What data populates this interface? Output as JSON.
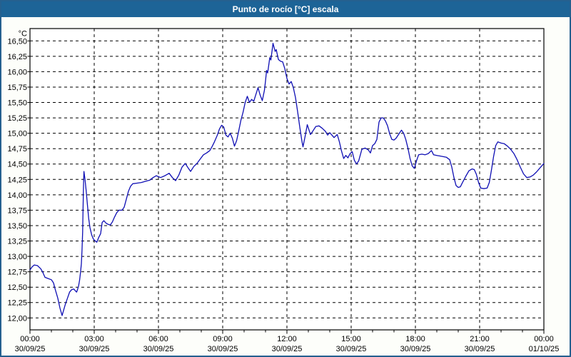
{
  "window": {
    "title": "Punto de rocío [°C] escala"
  },
  "colors": {
    "titlebar": "#1d6497",
    "title_text": "#ffffff",
    "window_border": "#25608f",
    "content_bg": "#fdfefa",
    "plot_bg": "#ffffff",
    "grid": "#000000",
    "axis_text": "#000000",
    "line": "#0f0fb4"
  },
  "chart_data": {
    "type": "line",
    "title": "Punto de rocío [°C] escala",
    "unit_label": "°C",
    "grid": "dashed",
    "legend": "none",
    "xlim_hours": [
      0,
      24
    ],
    "ylim": [
      12.0,
      16.5
    ],
    "y_tick_step": 0.25,
    "y_ticks": [
      16.5,
      16.25,
      16.0,
      15.75,
      15.5,
      15.25,
      15.0,
      14.75,
      14.5,
      14.25,
      14.0,
      13.75,
      13.5,
      13.25,
      13.0,
      12.75,
      12.5,
      12.25,
      12.0
    ],
    "y_tick_labels": [
      "16,50",
      "16,25",
      "16,00",
      "15,75",
      "15,50",
      "15,25",
      "15,00",
      "14,75",
      "14,50",
      "14,25",
      "14,00",
      "13,75",
      "13,50",
      "13,25",
      "13,00",
      "12,75",
      "12,50",
      "12,25",
      "12,00"
    ],
    "x_ticks": [
      {
        "h": 0,
        "time": "00:00",
        "date": "30/09/25"
      },
      {
        "h": 3,
        "time": "03:00",
        "date": "30/09/25"
      },
      {
        "h": 6,
        "time": "06:00",
        "date": "30/09/25"
      },
      {
        "h": 9,
        "time": "09:00",
        "date": "30/09/25"
      },
      {
        "h": 12,
        "time": "12:00",
        "date": "30/09/25"
      },
      {
        "h": 15,
        "time": "15:00",
        "date": "30/09/25"
      },
      {
        "h": 18,
        "time": "18:00",
        "date": "30/09/25"
      },
      {
        "h": 21,
        "time": "21:00",
        "date": "30/09/25"
      },
      {
        "h": 24,
        "time": "00:00",
        "date": "01/10/25"
      }
    ],
    "minor_tick_every_hours": 1,
    "series": [
      {
        "name": "Punto de rocío",
        "points": [
          [
            0.0,
            12.78
          ],
          [
            0.1,
            12.83
          ],
          [
            0.2,
            12.86
          ],
          [
            0.35,
            12.85
          ],
          [
            0.5,
            12.8
          ],
          [
            0.6,
            12.74
          ],
          [
            0.7,
            12.66
          ],
          [
            0.85,
            12.64
          ],
          [
            1.0,
            12.62
          ],
          [
            1.1,
            12.57
          ],
          [
            1.15,
            12.5
          ],
          [
            1.2,
            12.44
          ],
          [
            1.3,
            12.32
          ],
          [
            1.4,
            12.16
          ],
          [
            1.5,
            12.04
          ],
          [
            1.55,
            12.1
          ],
          [
            1.65,
            12.22
          ],
          [
            1.75,
            12.32
          ],
          [
            1.85,
            12.42
          ],
          [
            1.95,
            12.46
          ],
          [
            2.05,
            12.47
          ],
          [
            2.12,
            12.44
          ],
          [
            2.18,
            12.42
          ],
          [
            2.22,
            12.46
          ],
          [
            2.27,
            12.52
          ],
          [
            2.32,
            12.62
          ],
          [
            2.36,
            12.74
          ],
          [
            2.4,
            12.88
          ],
          [
            2.43,
            13.1
          ],
          [
            2.46,
            13.4
          ],
          [
            2.48,
            13.8
          ],
          [
            2.5,
            14.15
          ],
          [
            2.52,
            14.38
          ],
          [
            2.57,
            14.25
          ],
          [
            2.62,
            14.08
          ],
          [
            2.68,
            13.85
          ],
          [
            2.74,
            13.62
          ],
          [
            2.8,
            13.47
          ],
          [
            2.88,
            13.35
          ],
          [
            2.96,
            13.28
          ],
          [
            3.05,
            13.25
          ],
          [
            3.12,
            13.23
          ],
          [
            3.2,
            13.3
          ],
          [
            3.3,
            13.37
          ],
          [
            3.37,
            13.55
          ],
          [
            3.45,
            13.58
          ],
          [
            3.55,
            13.54
          ],
          [
            3.65,
            13.52
          ],
          [
            3.75,
            13.51
          ],
          [
            3.85,
            13.56
          ],
          [
            3.95,
            13.64
          ],
          [
            4.05,
            13.71
          ],
          [
            4.15,
            13.75
          ],
          [
            4.3,
            13.75
          ],
          [
            4.4,
            13.8
          ],
          [
            4.5,
            13.93
          ],
          [
            4.6,
            14.06
          ],
          [
            4.7,
            14.14
          ],
          [
            4.8,
            14.18
          ],
          [
            5.0,
            14.19
          ],
          [
            5.2,
            14.2
          ],
          [
            5.4,
            14.22
          ],
          [
            5.6,
            14.24
          ],
          [
            5.75,
            14.28
          ],
          [
            5.9,
            14.31
          ],
          [
            6.1,
            14.28
          ],
          [
            6.3,
            14.31
          ],
          [
            6.5,
            14.35
          ],
          [
            6.65,
            14.28
          ],
          [
            6.8,
            14.23
          ],
          [
            6.95,
            14.32
          ],
          [
            7.1,
            14.45
          ],
          [
            7.25,
            14.51
          ],
          [
            7.4,
            14.43
          ],
          [
            7.5,
            14.38
          ],
          [
            7.65,
            14.46
          ],
          [
            7.8,
            14.51
          ],
          [
            7.95,
            14.58
          ],
          [
            8.1,
            14.65
          ],
          [
            8.25,
            14.68
          ],
          [
            8.4,
            14.72
          ],
          [
            8.5,
            14.78
          ],
          [
            8.6,
            14.85
          ],
          [
            8.75,
            14.97
          ],
          [
            8.85,
            15.07
          ],
          [
            8.95,
            15.13
          ],
          [
            9.05,
            15.1
          ],
          [
            9.15,
            14.97
          ],
          [
            9.25,
            14.94
          ],
          [
            9.35,
            15.0
          ],
          [
            9.45,
            14.92
          ],
          [
            9.55,
            14.79
          ],
          [
            9.65,
            14.88
          ],
          [
            9.75,
            15.04
          ],
          [
            9.85,
            15.21
          ],
          [
            9.95,
            15.34
          ],
          [
            10.05,
            15.5
          ],
          [
            10.15,
            15.6
          ],
          [
            10.25,
            15.5
          ],
          [
            10.35,
            15.55
          ],
          [
            10.45,
            15.52
          ],
          [
            10.55,
            15.63
          ],
          [
            10.65,
            15.74
          ],
          [
            10.75,
            15.62
          ],
          [
            10.85,
            15.53
          ],
          [
            10.95,
            15.7
          ],
          [
            11.0,
            15.85
          ],
          [
            11.05,
            16.02
          ],
          [
            11.1,
            15.98
          ],
          [
            11.2,
            16.23
          ],
          [
            11.25,
            16.19
          ],
          [
            11.35,
            16.46
          ],
          [
            11.45,
            16.33
          ],
          [
            11.5,
            16.36
          ],
          [
            11.6,
            16.2
          ],
          [
            11.7,
            16.17
          ],
          [
            11.8,
            16.16
          ],
          [
            11.9,
            16.05
          ],
          [
            12.0,
            15.89
          ],
          [
            12.1,
            15.8
          ],
          [
            12.2,
            15.84
          ],
          [
            12.3,
            15.74
          ],
          [
            12.4,
            15.58
          ],
          [
            12.5,
            15.35
          ],
          [
            12.6,
            15.1
          ],
          [
            12.7,
            14.87
          ],
          [
            12.75,
            14.78
          ],
          [
            12.85,
            14.95
          ],
          [
            12.95,
            15.14
          ],
          [
            13.1,
            14.98
          ],
          [
            13.2,
            15.03
          ],
          [
            13.35,
            15.11
          ],
          [
            13.5,
            15.12
          ],
          [
            13.65,
            15.08
          ],
          [
            13.8,
            15.03
          ],
          [
            13.9,
            14.97
          ],
          [
            14.0,
            15.01
          ],
          [
            14.1,
            14.97
          ],
          [
            14.2,
            14.93
          ],
          [
            14.35,
            14.98
          ],
          [
            14.45,
            14.86
          ],
          [
            14.55,
            14.71
          ],
          [
            14.65,
            14.59
          ],
          [
            14.75,
            14.64
          ],
          [
            14.85,
            14.6
          ],
          [
            14.95,
            14.67
          ],
          [
            15.05,
            14.7
          ],
          [
            15.15,
            14.56
          ],
          [
            15.25,
            14.5
          ],
          [
            15.35,
            14.55
          ],
          [
            15.5,
            14.74
          ],
          [
            15.65,
            14.76
          ],
          [
            15.8,
            14.73
          ],
          [
            15.9,
            14.68
          ],
          [
            16.0,
            14.8
          ],
          [
            16.1,
            14.83
          ],
          [
            16.2,
            14.9
          ],
          [
            16.3,
            15.18
          ],
          [
            16.4,
            15.25
          ],
          [
            16.5,
            15.25
          ],
          [
            16.6,
            15.2
          ],
          [
            16.7,
            15.12
          ],
          [
            16.8,
            14.99
          ],
          [
            16.9,
            14.9
          ],
          [
            17.0,
            14.89
          ],
          [
            17.1,
            14.92
          ],
          [
            17.25,
            15.0
          ],
          [
            17.35,
            15.05
          ],
          [
            17.45,
            15.0
          ],
          [
            17.55,
            14.9
          ],
          [
            17.65,
            14.76
          ],
          [
            17.75,
            14.59
          ],
          [
            17.85,
            14.47
          ],
          [
            17.95,
            14.43
          ],
          [
            18.05,
            14.55
          ],
          [
            18.15,
            14.65
          ],
          [
            18.3,
            14.66
          ],
          [
            18.45,
            14.65
          ],
          [
            18.6,
            14.67
          ],
          [
            18.75,
            14.72
          ],
          [
            18.85,
            14.65
          ],
          [
            19.0,
            14.64
          ],
          [
            19.15,
            14.63
          ],
          [
            19.3,
            14.62
          ],
          [
            19.45,
            14.61
          ],
          [
            19.6,
            14.57
          ],
          [
            19.7,
            14.45
          ],
          [
            19.8,
            14.28
          ],
          [
            19.9,
            14.15
          ],
          [
            20.0,
            14.12
          ],
          [
            20.1,
            14.13
          ],
          [
            20.2,
            14.2
          ],
          [
            20.35,
            14.3
          ],
          [
            20.5,
            14.39
          ],
          [
            20.65,
            14.42
          ],
          [
            20.75,
            14.41
          ],
          [
            20.85,
            14.33
          ],
          [
            20.95,
            14.2
          ],
          [
            21.05,
            14.11
          ],
          [
            21.2,
            14.1
          ],
          [
            21.35,
            14.11
          ],
          [
            21.45,
            14.2
          ],
          [
            21.55,
            14.4
          ],
          [
            21.65,
            14.62
          ],
          [
            21.75,
            14.8
          ],
          [
            21.85,
            14.86
          ],
          [
            22.0,
            14.84
          ],
          [
            22.15,
            14.83
          ],
          [
            22.3,
            14.79
          ],
          [
            22.45,
            14.74
          ],
          [
            22.6,
            14.67
          ],
          [
            22.75,
            14.57
          ],
          [
            22.9,
            14.45
          ],
          [
            23.05,
            14.34
          ],
          [
            23.2,
            14.28
          ],
          [
            23.35,
            14.29
          ],
          [
            23.5,
            14.32
          ],
          [
            23.65,
            14.37
          ],
          [
            23.8,
            14.43
          ],
          [
            23.9,
            14.47
          ],
          [
            24.0,
            14.51
          ]
        ]
      }
    ]
  }
}
